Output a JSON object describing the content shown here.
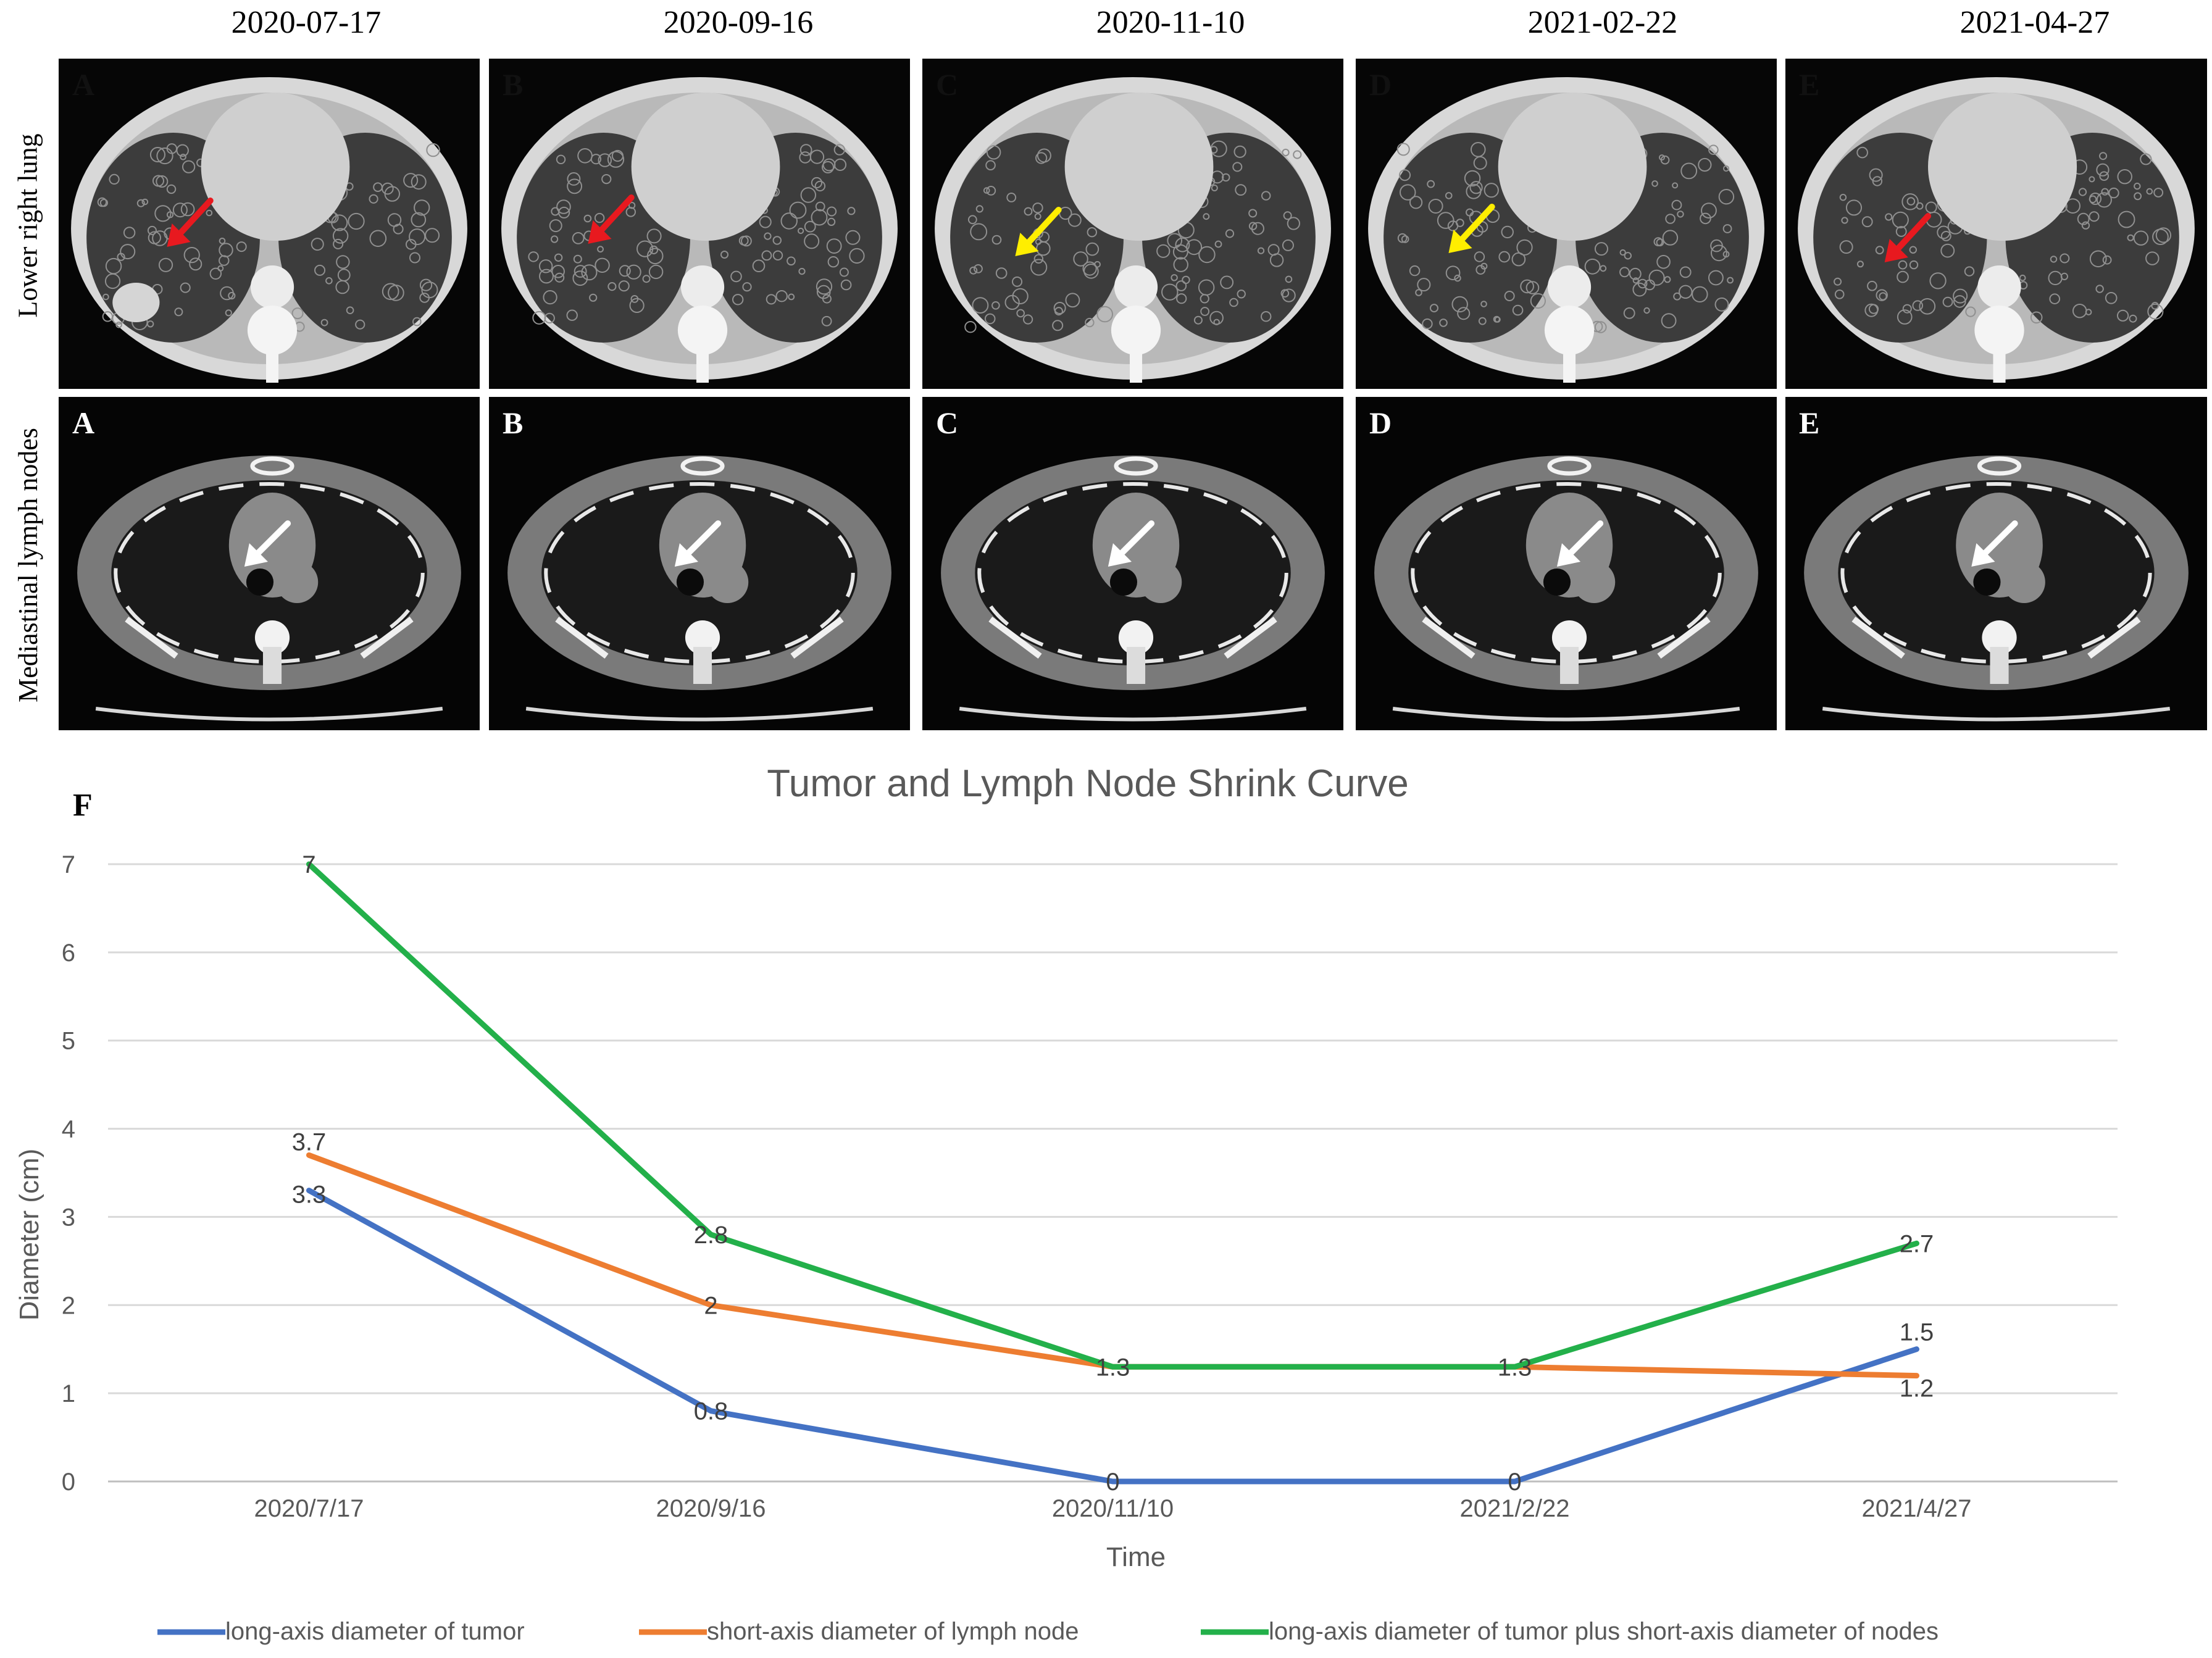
{
  "dates": [
    "2020-07-17",
    "2020-09-16",
    "2020-11-10",
    "2021-02-22",
    "2021-04-27"
  ],
  "rows": {
    "lung_label": "Lower right lung",
    "mediastinal_label": "Mediastinal lymph nodes"
  },
  "panel_letters": [
    "A",
    "B",
    "C",
    "D",
    "E"
  ],
  "lung_arrow_colors": [
    "#e8191f",
    "#e8191f",
    "#ffee00",
    "#ffee00",
    "#e8191f"
  ],
  "mediastinal_arrow_color": "#ffffff",
  "figure_letter": "F",
  "chart_data": {
    "type": "line",
    "title": "Tumor and Lymph Node Shrink Curve",
    "xlabel": "Time",
    "ylabel": "Diameter (cm)",
    "categories": [
      "2020/7/17",
      "2020/9/16",
      "2020/11/10",
      "2021/2/22",
      "2021/4/27"
    ],
    "ylim": [
      0,
      7
    ],
    "yticks": [
      0,
      1,
      2,
      3,
      4,
      5,
      6,
      7
    ],
    "grid": true,
    "legend_position": "bottom",
    "series": [
      {
        "name": "long-axis diameter of tumor",
        "color": "#4472c4",
        "values": [
          3.3,
          0.8,
          0,
          0,
          1.5
        ]
      },
      {
        "name": "short-axis diameter of lymph node",
        "color": "#ed7d31",
        "values": [
          3.7,
          2,
          1.3,
          1.3,
          1.2
        ]
      },
      {
        "name": "long-axis diameter of tumor plus short-axis diameter of nodes",
        "color": "#23b04a",
        "values": [
          7,
          2.8,
          1.3,
          1.3,
          2.7
        ]
      }
    ],
    "data_labels": [
      {
        "text": "7",
        "category": 0,
        "value": 7
      },
      {
        "text": "3.7",
        "category": 0,
        "value": 3.7
      },
      {
        "text": "3.3",
        "category": 0,
        "value": 3.3
      },
      {
        "text": "2.8",
        "category": 1,
        "value": 2.8
      },
      {
        "text": "2",
        "category": 1,
        "value": 2
      },
      {
        "text": "0.8",
        "category": 1,
        "value": 0.8
      },
      {
        "text": "1.3",
        "category": 2,
        "value": 1.3
      },
      {
        "text": "0",
        "category": 2,
        "value": 0
      },
      {
        "text": "1.3",
        "category": 3,
        "value": 1.3
      },
      {
        "text": "0",
        "category": 3,
        "value": 0
      },
      {
        "text": "2.7",
        "category": 4,
        "value": 2.7
      },
      {
        "text": "1.5",
        "category": 4,
        "value": 1.5
      },
      {
        "text": "1.2",
        "category": 4,
        "value": 1.2
      }
    ]
  }
}
